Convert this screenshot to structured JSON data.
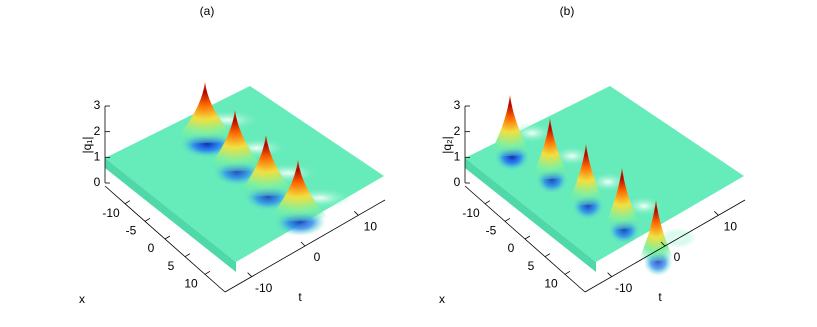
{
  "chart_data": [
    {
      "type": "surface3d",
      "title": "(a)",
      "zlabel": "|q₁|",
      "xlabel": "x",
      "ylabel": "t",
      "xlim": [
        -15,
        15
      ],
      "xticks": [
        -10,
        -5,
        0,
        5,
        10
      ],
      "ylim": [
        -15,
        15
      ],
      "yticks": [
        -10,
        0,
        10
      ],
      "zlim": [
        0,
        3
      ],
      "zticks": [
        0,
        1,
        2,
        3
      ]
    },
    {
      "type": "surface3d",
      "title": "(b)",
      "zlabel": "|q₂|",
      "xlabel": "x",
      "ylabel": "t",
      "xlim": [
        -15,
        15
      ],
      "xticks": [
        -10,
        -5,
        0,
        5,
        10
      ],
      "ylim": [
        -15,
        15
      ],
      "yticks": [
        -10,
        0,
        10
      ],
      "zlim": [
        0,
        3
      ],
      "zticks": [
        0,
        1,
        2,
        3
      ]
    }
  ]
}
